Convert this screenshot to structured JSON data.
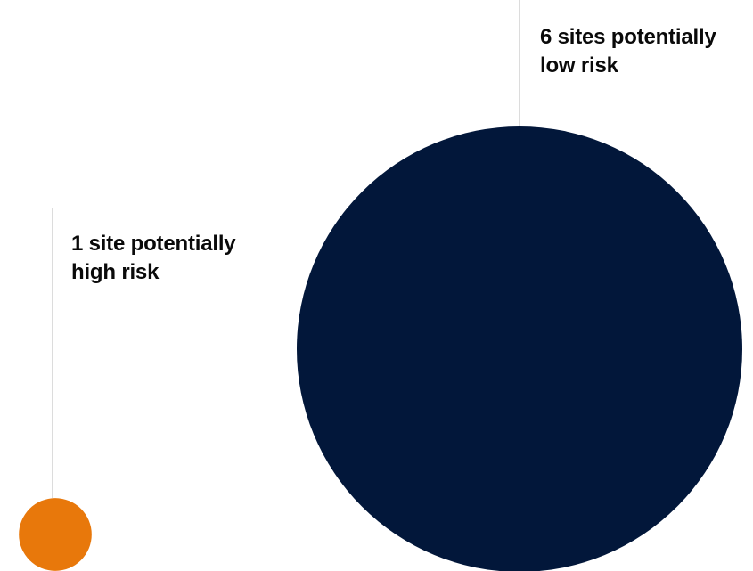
{
  "chart_data": {
    "type": "bubble",
    "title": "",
    "series": [
      {
        "category": "potentially high risk",
        "value": 1,
        "label_line1": "1 site potentially",
        "label_line2": "high risk",
        "color": "#e8780b"
      },
      {
        "category": "potentially low risk",
        "value": 6,
        "label_line1": "6 sites potentially",
        "label_line2": "low risk",
        "color": "#02173a"
      }
    ],
    "leader_line_color": "#dcdcdc",
    "size_encoding": "area"
  }
}
